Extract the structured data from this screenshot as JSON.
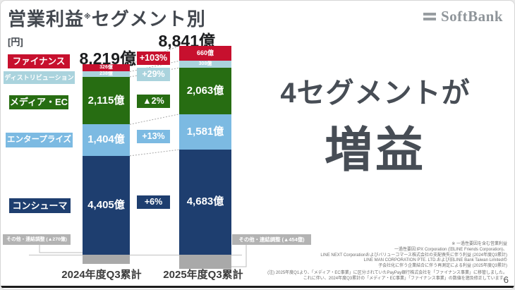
{
  "slide": {
    "title_main": "営業利益",
    "title_mark": "※",
    "title_rest": "セグメント別",
    "unit_label": "[円]",
    "logo_text": "SoftBank",
    "headline_line1": "4セグメントが",
    "headline_line2": "増益",
    "page_number": "6"
  },
  "chart_data": {
    "type": "bar",
    "stacked": true,
    "value_unit": "億円",
    "categories": [
      "2024年度Q3累計",
      "2025年度Q3累計"
    ],
    "totals": [
      "8,219億",
      "8,841億"
    ],
    "series": [
      {
        "name": "ファイナンス",
        "color": "#c7102e",
        "values": [
          326,
          660
        ],
        "value_labels": [
          "326億",
          "660億"
        ],
        "change": "+103%"
      },
      {
        "name": "ディストリビューション",
        "color": "#aad3dd",
        "values": [
          238,
          308
        ],
        "value_labels": [
          "238億",
          "308億"
        ],
        "change": "+29%"
      },
      {
        "name": "メディア・EC",
        "color": "#276d12",
        "values": [
          2115,
          2063
        ],
        "value_labels": [
          "2,115億",
          "2,063億"
        ],
        "change": "▲2%"
      },
      {
        "name": "エンタープライズ",
        "color": "#7cbae2",
        "values": [
          1404,
          1581
        ],
        "value_labels": [
          "1,404億",
          "1,581億"
        ],
        "change": "+13%"
      },
      {
        "name": "コンシューマ",
        "color": "#1e3e6f",
        "values": [
          4405,
          4683
        ],
        "value_labels": [
          "4,405億",
          "4,683億"
        ],
        "change": "+6%"
      }
    ],
    "other": {
      "name": "その他・連結調整",
      "color": "#a9a9a9",
      "values": [
        -270,
        -454
      ],
      "labels": [
        "その他・連結調整 (▲270億)",
        "その他・連結調整 (▲454億)"
      ]
    }
  },
  "footnotes": [
    "※ 一過性要因を含む営業利益",
    "一過性要因:IPX Corporation (旧LINE Friends Corporation)、",
    "LINE NEXT Corporationおよびバリューコマース株式会社の支配喪失に伴う利益 (2024年度Q3累計)",
    "LINE MAN CORPORATION PTE. LTD.および旧LINE Bank Taiwan Limitedの",
    "子会社化に伴う企業結合に伴う再測定による利益 (2025年度Q3累計)",
    "(注) 2025年度Q1より、「メディア・EC事業」に区分されていたPayPay銀行株式会社を「ファイナンス事業」に移管しました。",
    "これに伴い、2024年度Q3累計の「メディア・EC事業」「ファイナンス事業」の数値を遡及修正しています。"
  ]
}
